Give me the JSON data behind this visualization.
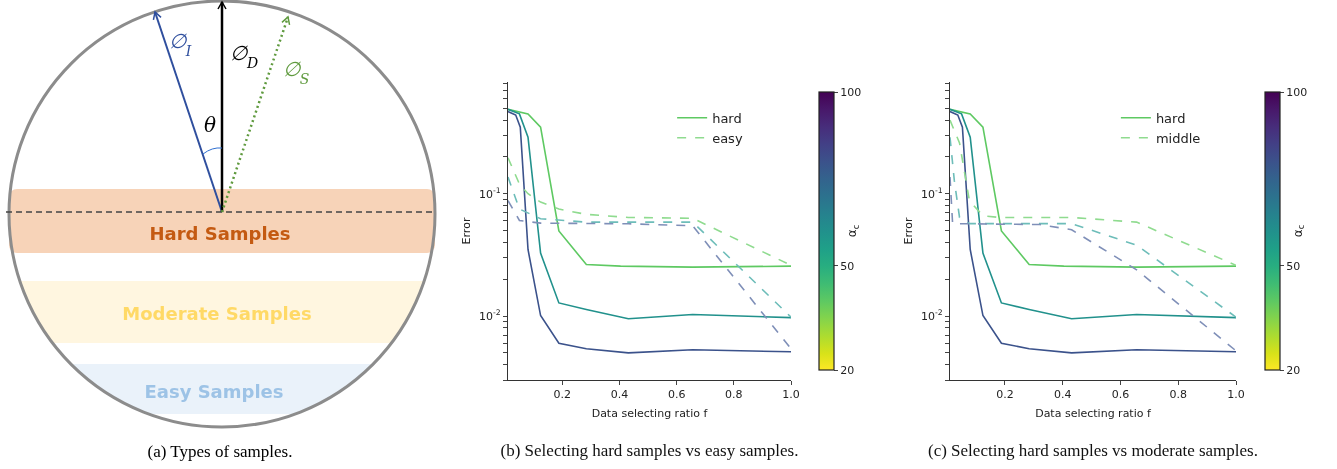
{
  "chart_data": [
    {
      "type": "other",
      "title": "(a) Types of samples.",
      "annotations": [
        "∅$_{I}$",
        "∅$_{D}$",
        "∅$_{S}$",
        "θ",
        "Hard Samples",
        "Moderate Samples",
        "Easy Samples"
      ]
    },
    {
      "type": "line",
      "title": "(b) Selecting hard samples vs easy samples.",
      "xlabel": "Data selecting ratio f",
      "ylabel": "Error",
      "clabel": "α$_{c}$",
      "clim": [
        20,
        100
      ],
      "cticks": [
        20,
        50,
        100
      ],
      "log": "y",
      "grid": false,
      "legend": "top right",
      "xlim": [
        0.01,
        1.0
      ],
      "xticks": [
        0.2,
        0.4,
        0.6,
        0.8,
        {
          "value": 1.0,
          "label": "1.0"
        }
      ],
      "ylim": [
        0.003,
        0.82
      ],
      "yticks": [
        {
          "value": 0.003,
          "label": null
        },
        {
          "value": 0.004,
          "label": null
        },
        {
          "value": 0.005,
          "label": null
        },
        {
          "value": 0.006,
          "label": null
        },
        {
          "value": 0.007,
          "label": null
        },
        {
          "value": 0.008,
          "label": null
        },
        {
          "value": 0.009,
          "label": null
        },
        {
          "value": 0.01,
          "label": "10$^{-2}$"
        },
        {
          "value": 0.02,
          "label": null
        },
        {
          "value": 0.03,
          "label": null
        },
        {
          "value": 0.04,
          "label": null
        },
        {
          "value": 0.05,
          "label": null
        },
        {
          "value": 0.06,
          "label": null
        },
        {
          "value": 0.07,
          "label": null
        },
        {
          "value": 0.08,
          "label": null
        },
        {
          "value": 0.09,
          "label": null
        },
        {
          "value": 0.1,
          "label": "10$^{-1}$"
        },
        {
          "value": 0.2,
          "label": null
        },
        {
          "value": 0.3,
          "label": null
        },
        {
          "value": 0.4,
          "label": null
        },
        {
          "value": 0.5,
          "label": null
        },
        {
          "value": 0.6,
          "label": null
        },
        {
          "value": 0.7,
          "label": null
        },
        {
          "value": 0.8,
          "label": null
        }
      ],
      "series": [
        {
          "name": "hard",
          "color": "#5ec962",
          "line_style": "solid",
          "x": [
            0.01,
            0.08,
            0.124,
            0.188,
            0.284,
            0.404,
            0.656,
            1.0
          ],
          "values": [
            0.49,
            0.45,
            0.35,
            0.0496,
            0.0264,
            0.0256,
            0.0251,
            0.0256
          ]
        },
        {
          "color": "#21918c",
          "line_style": "solid",
          "x": [
            0.01,
            0.05,
            0.08,
            0.124,
            0.188,
            0.284,
            0.431,
            0.656,
            1.0
          ],
          "values": [
            0.49,
            0.45,
            0.29,
            0.0327,
            0.0128,
            0.0113,
            0.0095,
            0.0103,
            0.0097
          ]
        },
        {
          "color": "#3b528b",
          "line_style": "solid",
          "x": [
            0.01,
            0.037,
            0.053,
            0.08,
            0.124,
            0.188,
            0.284,
            0.431,
            0.656,
            1.0
          ],
          "values": [
            0.47,
            0.44,
            0.35,
            0.035,
            0.0101,
            0.006,
            0.0054,
            0.005,
            0.0053,
            0.0051
          ]
        },
        {
          "name": "easy",
          "color": "#8fdb8f",
          "line_style": "dashed",
          "x": [
            0.01,
            0.05,
            0.08,
            0.124,
            0.188,
            0.284,
            0.431,
            0.656,
            1.0
          ],
          "values": [
            0.197,
            0.12,
            0.1,
            0.0855,
            0.075,
            0.0678,
            0.064,
            0.063,
            0.026
          ]
        },
        {
          "color": "#6dbdb9",
          "line_style": "dashed",
          "x": [
            0.01,
            0.05,
            0.124,
            0.284,
            0.656,
            1.0
          ],
          "values": [
            0.137,
            0.075,
            0.0625,
            0.0586,
            0.0586,
            0.0098
          ]
        },
        {
          "color": "#7f8fb8",
          "line_style": "dashed",
          "x": [
            0.01,
            0.05,
            0.124,
            0.431,
            0.656,
            1.0
          ],
          "values": [
            0.088,
            0.0605,
            0.0575,
            0.0568,
            0.0547,
            0.0054
          ]
        }
      ]
    },
    {
      "type": "line",
      "title": "(c) Selecting hard samples vs moderate samples.",
      "xlabel": "Data selecting ratio f",
      "ylabel": "Error",
      "clabel": "α$_{c}$",
      "clim": [
        20,
        100
      ],
      "cticks": [
        20,
        50,
        100
      ],
      "log": "y",
      "grid": false,
      "legend": "top right",
      "xlim": [
        0.01,
        1.0
      ],
      "xticks": [
        0.2,
        0.4,
        0.6,
        0.8,
        {
          "value": 1.0,
          "label": "1.0"
        }
      ],
      "ylim": [
        0.003,
        0.82
      ],
      "yticks": [
        {
          "value": 0.003,
          "label": null
        },
        {
          "value": 0.004,
          "label": null
        },
        {
          "value": 0.005,
          "label": null
        },
        {
          "value": 0.006,
          "label": null
        },
        {
          "value": 0.007,
          "label": null
        },
        {
          "value": 0.008,
          "label": null
        },
        {
          "value": 0.009,
          "label": null
        },
        {
          "value": 0.01,
          "label": "10$^{-2}$"
        },
        {
          "value": 0.02,
          "label": null
        },
        {
          "value": 0.03,
          "label": null
        },
        {
          "value": 0.04,
          "label": null
        },
        {
          "value": 0.05,
          "label": null
        },
        {
          "value": 0.06,
          "label": null
        },
        {
          "value": 0.07,
          "label": null
        },
        {
          "value": 0.08,
          "label": null
        },
        {
          "value": 0.09,
          "label": null
        },
        {
          "value": 0.1,
          "label": "10$^{-1}$"
        },
        {
          "value": 0.2,
          "label": null
        },
        {
          "value": 0.3,
          "label": null
        },
        {
          "value": 0.4,
          "label": null
        },
        {
          "value": 0.5,
          "label": null
        },
        {
          "value": 0.6,
          "label": null
        },
        {
          "value": 0.7,
          "label": null
        },
        {
          "value": 0.8,
          "label": null
        }
      ],
      "series": [
        {
          "name": "hard",
          "color": "#5ec962",
          "line_style": "solid",
          "x": [
            0.01,
            0.08,
            0.124,
            0.188,
            0.284,
            0.404,
            0.656,
            1.0
          ],
          "values": [
            0.49,
            0.45,
            0.35,
            0.0496,
            0.0264,
            0.0256,
            0.0251,
            0.0256
          ]
        },
        {
          "color": "#21918c",
          "line_style": "solid",
          "x": [
            0.01,
            0.05,
            0.08,
            0.124,
            0.188,
            0.284,
            0.431,
            0.656,
            1.0
          ],
          "values": [
            0.49,
            0.45,
            0.29,
            0.0327,
            0.0128,
            0.0113,
            0.0095,
            0.0103,
            0.0097
          ]
        },
        {
          "color": "#3b528b",
          "line_style": "solid",
          "x": [
            0.01,
            0.037,
            0.053,
            0.08,
            0.124,
            0.188,
            0.284,
            0.431,
            0.656,
            1.0
          ],
          "values": [
            0.47,
            0.44,
            0.35,
            0.035,
            0.0101,
            0.006,
            0.0054,
            0.005,
            0.0053,
            0.0051
          ]
        },
        {
          "name": "middle",
          "color": "#8fdb8f",
          "line_style": "dashed",
          "x": [
            0.01,
            0.043,
            0.077,
            0.124,
            0.181,
            0.431,
            0.656,
            1.0
          ],
          "values": [
            0.4,
            0.26,
            0.088,
            0.066,
            0.064,
            0.064,
            0.0586,
            0.026
          ]
        },
        {
          "color": "#6dbdb9",
          "line_style": "dashed",
          "x": [
            0.01,
            0.025,
            0.043,
            0.077,
            0.431,
            0.656,
            1.0
          ],
          "values": [
            0.29,
            0.128,
            0.064,
            0.057,
            0.057,
            0.038,
            0.0098
          ]
        },
        {
          "color": "#7f8fb8",
          "line_style": "dashed",
          "x": [
            0.01,
            0.019,
            0.32,
            0.431,
            0.656,
            1.0
          ],
          "values": [
            0.137,
            0.057,
            0.056,
            0.0508,
            0.0239,
            0.0052
          ]
        }
      ]
    }
  ]
}
